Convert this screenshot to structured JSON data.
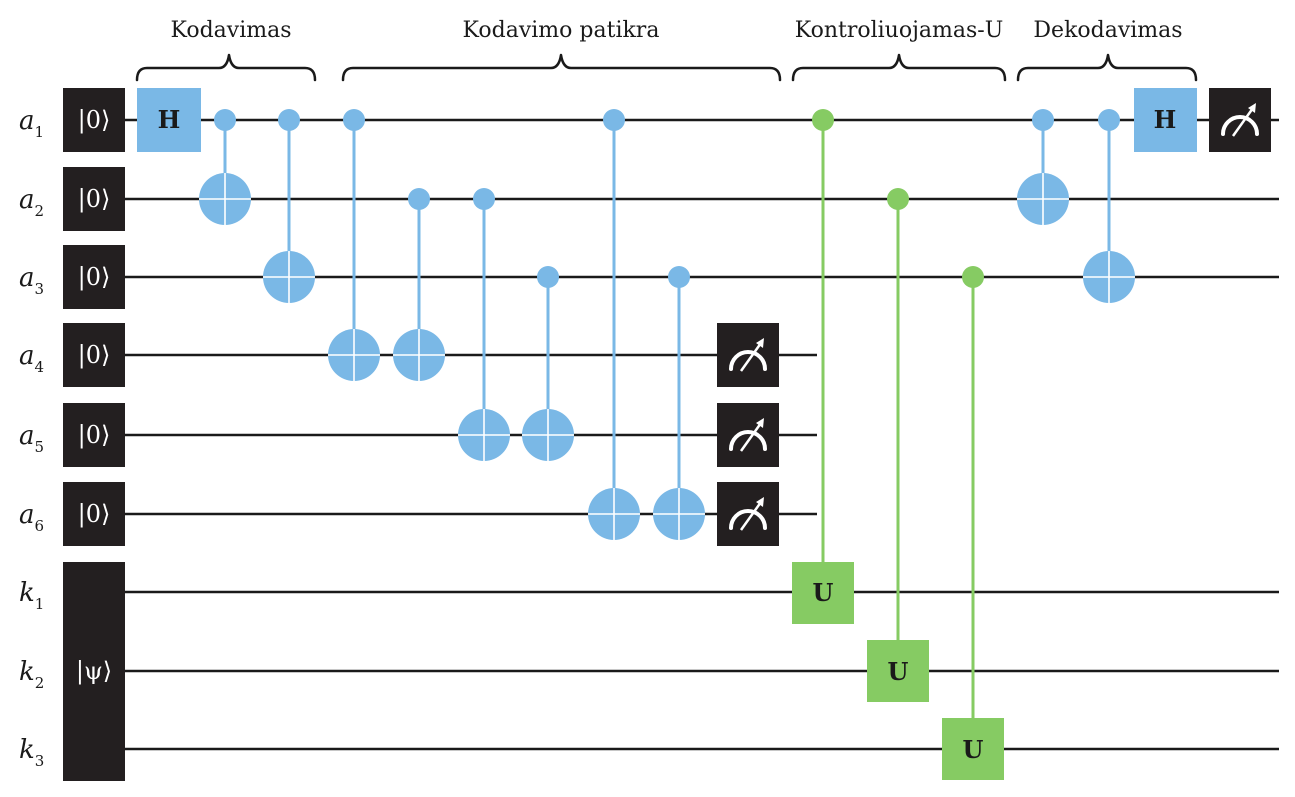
{
  "groups": {
    "encoding": "Kodavimas",
    "encoding_check": "Kodavimo patikra",
    "controlled_u": "Kontroliuojamas-U",
    "decoding": "Dekodavimas"
  },
  "qubits": [
    {
      "letter": "a",
      "index": "1",
      "init": "|0⟩"
    },
    {
      "letter": "a",
      "index": "2",
      "init": "|0⟩"
    },
    {
      "letter": "a",
      "index": "3",
      "init": "|0⟩"
    },
    {
      "letter": "a",
      "index": "4",
      "init": "|0⟩"
    },
    {
      "letter": "a",
      "index": "5",
      "init": "|0⟩"
    },
    {
      "letter": "a",
      "index": "6",
      "init": "|0⟩"
    },
    {
      "letter": "k",
      "index": "1"
    },
    {
      "letter": "k",
      "index": "2"
    },
    {
      "letter": "k",
      "index": "3"
    }
  ],
  "register_init": "|ψ⟩",
  "gates": {
    "hadamard_label": "H",
    "unitary_label": "U"
  },
  "colors": {
    "ancilla_gates": "#7ab8e6",
    "controlled_u": "#86cb63",
    "init_box": "#231f20",
    "wire": "#1a1a1a"
  },
  "icons": {
    "measurement": "measurement-meter-icon",
    "cnot_target": "cnot-target-icon",
    "control_dot": "control-dot-icon"
  }
}
